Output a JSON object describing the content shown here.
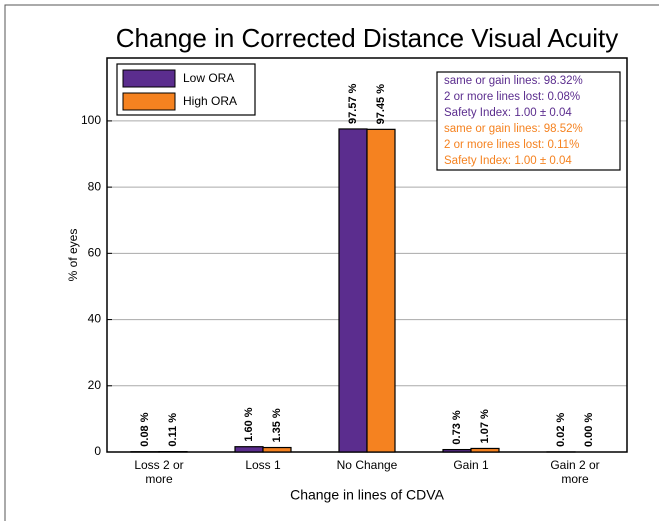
{
  "chart_data": {
    "type": "bar",
    "title": "Change in Corrected Distance Visual Acuity",
    "xlabel": "Change in lines of CDVA",
    "ylabel": "% of eyes",
    "categories": [
      "Loss 2 or more",
      "Loss 1",
      "No Change",
      "Gain 1",
      "Gain 2 or more"
    ],
    "series": [
      {
        "name": "Low ORA",
        "color": "#5b2d8e",
        "values": [
          0.08,
          1.6,
          97.57,
          0.73,
          0.02
        ],
        "value_labels": [
          "0.08 %",
          "1.60 %",
          "97.57 %",
          "0.73 %",
          "0.02 %"
        ]
      },
      {
        "name": "High ORA",
        "color": "#f58220",
        "values": [
          0.11,
          1.35,
          97.45,
          1.07,
          0.0
        ],
        "value_labels": [
          "0.11 %",
          "1.35 %",
          "97.45 %",
          "1.07 %",
          "0.00 %"
        ]
      }
    ],
    "ylim": [
      0,
      119
    ],
    "yticks": [
      0,
      20,
      40,
      60,
      80,
      100
    ],
    "grid": true,
    "legend": "top-left",
    "annotations": [
      {
        "text": "same or gain lines: 98.32%",
        "color": "#5b2d8e"
      },
      {
        "text": "2 or more lines lost: 0.08%",
        "color": "#5b2d8e"
      },
      {
        "text": "Safety Index: 1.00 ± 0.04",
        "color": "#5b2d8e"
      },
      {
        "text": "same or gain lines: 98.52%",
        "color": "#f58220"
      },
      {
        "text": "2 or more lines lost: 0.11%",
        "color": "#f58220"
      },
      {
        "text": "Safety Index: 1.00 ± 0.04",
        "color": "#f58220"
      }
    ]
  }
}
